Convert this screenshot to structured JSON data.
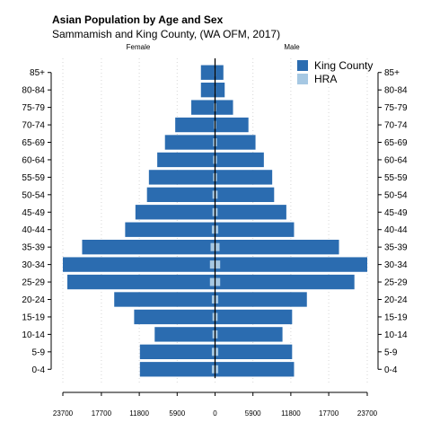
{
  "chart_data": {
    "type": "bar",
    "orientation": "horizontal-population-pyramid",
    "title": "Asian Population by Age and Sex",
    "subtitle": "Sammamish and King County, (WA OFM, 2017)",
    "left_label": "Female",
    "right_label": "Male",
    "categories": [
      "0-4",
      "5-9",
      "10-14",
      "15-19",
      "20-24",
      "25-29",
      "30-34",
      "35-39",
      "40-44",
      "45-49",
      "50-54",
      "55-59",
      "60-64",
      "65-69",
      "70-74",
      "75-79",
      "80-84",
      "85+"
    ],
    "series": [
      {
        "name": "King County",
        "color": "#2b6cb0",
        "female": [
          11700,
          11700,
          9400,
          12600,
          15700,
          23000,
          23700,
          20700,
          14000,
          12400,
          10600,
          10300,
          9000,
          7800,
          6200,
          3700,
          2200,
          2200
        ],
        "male": [
          12300,
          12000,
          10500,
          12000,
          14300,
          21700,
          23700,
          19300,
          12300,
          11100,
          9200,
          8900,
          7600,
          6300,
          5200,
          2800,
          1500,
          1300
        ]
      },
      {
        "name": "HRA",
        "color": "#a6c8e3",
        "female": [
          500,
          500,
          400,
          400,
          500,
          800,
          800,
          700,
          500,
          400,
          400,
          300,
          300,
          300,
          200,
          200,
          100,
          100
        ],
        "male": [
          500,
          500,
          400,
          400,
          500,
          800,
          800,
          700,
          500,
          400,
          400,
          300,
          300,
          300,
          200,
          200,
          100,
          100
        ]
      }
    ],
    "x_tick_labels": [
      "23700",
      "17700",
      "11800",
      "5900",
      "0",
      "5900",
      "11800",
      "17700",
      "23700"
    ],
    "x_tick_values": [
      -23700,
      -17700,
      -11800,
      -5900,
      0,
      5900,
      11800,
      17700,
      23700
    ],
    "xlim": [
      -23700,
      23700
    ],
    "grid": true,
    "legend_position": "top-right"
  }
}
